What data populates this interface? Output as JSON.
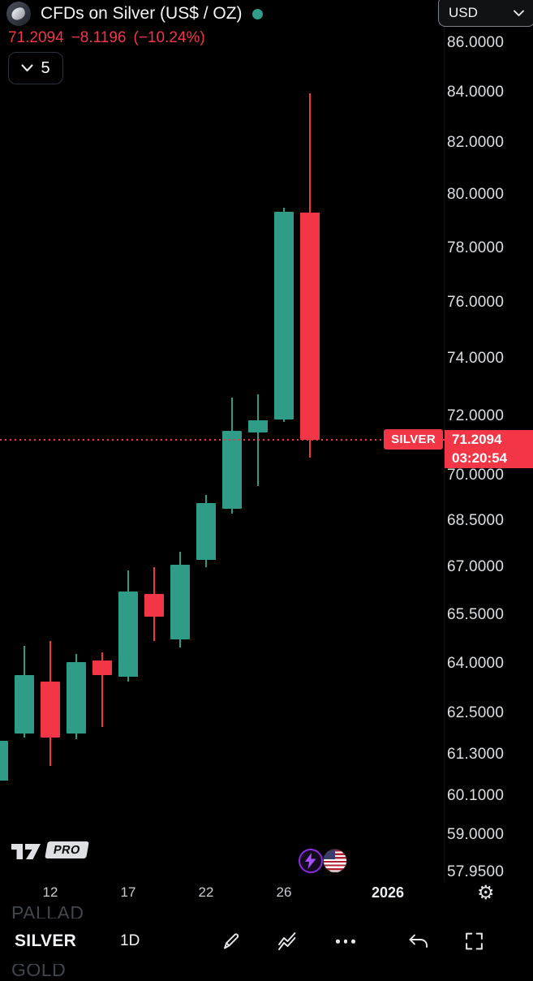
{
  "header": {
    "title": "CFDs on Silver (US$ / OZ)",
    "currency": "USD",
    "last_price": "71.2094",
    "change": "−8.1196",
    "change_pct": "(−10.24%)",
    "collapsed_count": "5"
  },
  "price_label": {
    "symbol": "SILVER",
    "price": "71.2094",
    "countdown": "03:20:54"
  },
  "logo_badge": "PRO",
  "bottom_toolbar": {
    "symbol": "SILVER",
    "interval": "1D"
  },
  "background_items": {
    "item1": "PALLAD",
    "item2": "GOLD"
  },
  "icons": {
    "gear": "⚙"
  },
  "colors": {
    "up": "#2f9c87",
    "down": "#f23645",
    "accent": "#f23645",
    "teal_dot": "#2f9e8a"
  },
  "chart_data": {
    "type": "candlestick",
    "title": "CFDs on Silver (US$ / OZ)",
    "interval": "1D",
    "scale": "logarithmic",
    "y_domain": [
      57.3,
      87.0
    ],
    "current_price": 71.2094,
    "prev_close": 79.329,
    "countdown": "03:20:54",
    "y_ticks": [
      "86.0000",
      "84.0000",
      "82.0000",
      "80.0000",
      "78.0000",
      "76.0000",
      "74.0000",
      "72.0000",
      "70.0000",
      "68.5000",
      "67.0000",
      "65.5000",
      "64.0000",
      "62.5000",
      "61.3000",
      "60.1000",
      "59.0000",
      "57.9500"
    ],
    "x_ticks": [
      {
        "label": "12",
        "index": 2
      },
      {
        "label": "17",
        "index": 5
      },
      {
        "label": "22",
        "index": 8
      },
      {
        "label": "26",
        "index": 11
      },
      {
        "label": "2026",
        "index": 15,
        "major": true
      }
    ],
    "candles": [
      {
        "open": 60.55,
        "high": 61.8,
        "low": 60.45,
        "close": 61.7
      },
      {
        "open": 61.9,
        "high": 64.55,
        "low": 61.8,
        "close": 63.65
      },
      {
        "open": 63.45,
        "high": 64.7,
        "low": 60.95,
        "close": 61.8
      },
      {
        "open": 61.9,
        "high": 64.3,
        "low": 61.75,
        "close": 64.05
      },
      {
        "open": 64.1,
        "high": 64.35,
        "low": 62.1,
        "close": 63.65
      },
      {
        "open": 63.6,
        "high": 66.9,
        "low": 63.45,
        "close": 66.25
      },
      {
        "open": 66.15,
        "high": 67.0,
        "low": 64.7,
        "close": 65.45
      },
      {
        "open": 64.75,
        "high": 67.5,
        "low": 64.5,
        "close": 67.1
      },
      {
        "open": 67.25,
        "high": 69.35,
        "low": 67.0,
        "close": 69.1
      },
      {
        "open": 68.9,
        "high": 72.65,
        "low": 68.75,
        "close": 71.5
      },
      {
        "open": 71.45,
        "high": 72.75,
        "low": 69.65,
        "close": 71.85
      },
      {
        "open": 71.9,
        "high": 79.5,
        "low": 71.8,
        "close": 79.35
      },
      {
        "open": 79.33,
        "high": 83.95,
        "low": 70.6,
        "close": 71.2094
      }
    ]
  }
}
